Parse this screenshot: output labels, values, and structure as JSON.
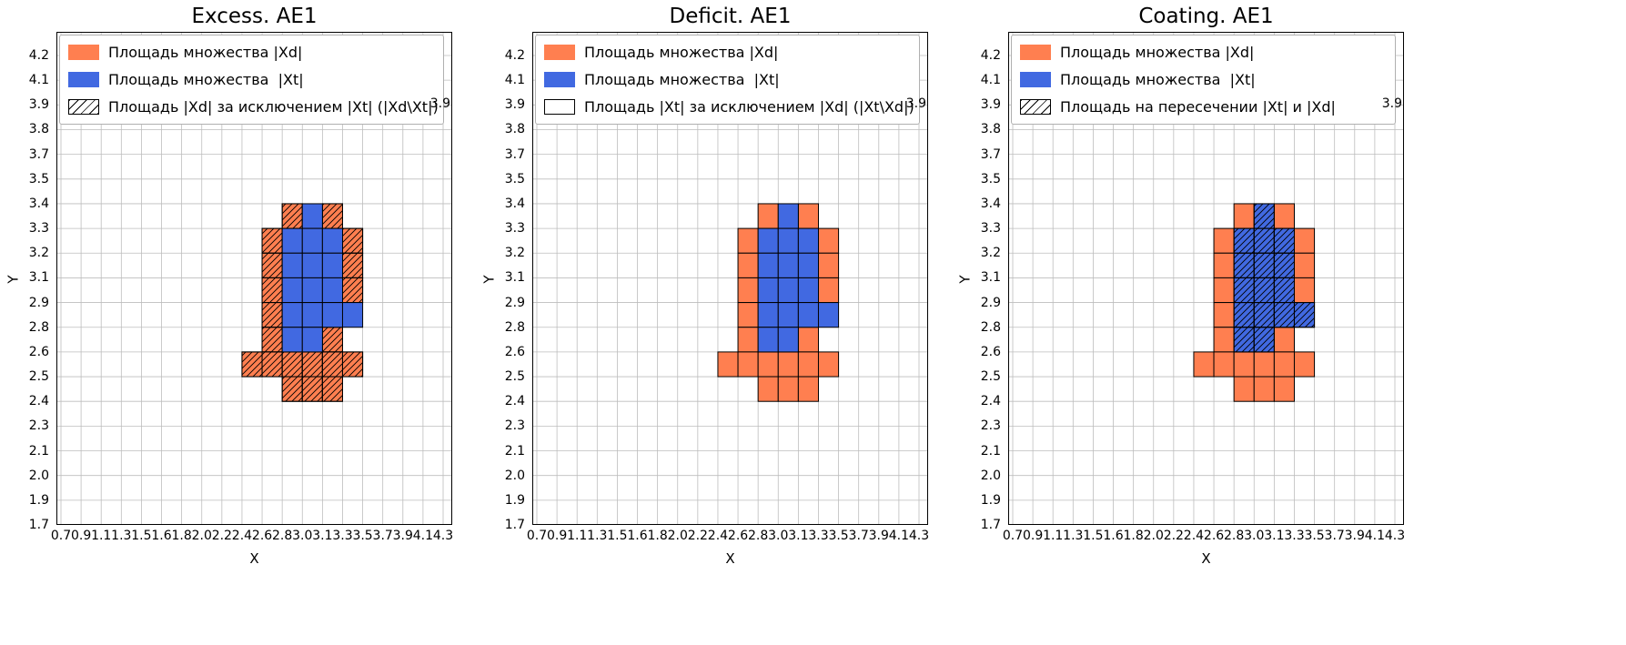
{
  "colors": {
    "xd": "#FF7F50",
    "xt": "#4169E1",
    "cell_edge": "#000000",
    "grid": "#bdbdbd",
    "spine": "#000000",
    "legend_border": "#b0b0b0",
    "background": "#ffffff"
  },
  "grid_layout": {
    "cols": 19,
    "rows": 19,
    "note": "cells indexed [col,row], col 0 at left x tick 0.7, row 0 at bottom y tick 1.7"
  },
  "chart_data": [
    {
      "type": "heatmap",
      "title": "Excess. AE1",
      "xlabel": "X",
      "ylabel": "Y",
      "grid": true,
      "legend_position": "upper left",
      "stray_right_tick_label": "3.9",
      "x_tick_labels": [
        "0.7",
        "0.9",
        "1.1",
        "1.3",
        "1.5",
        "1.6",
        "1.8",
        "2.0",
        "2.2",
        "2.4",
        "2.6",
        "2.8",
        "3.0",
        "3.1",
        "3.3",
        "3.5",
        "3.7",
        "3.9",
        "4.1",
        "4.3"
      ],
      "y_tick_labels_top_to_bottom": [
        "4.2",
        "4.1",
        "3.9",
        "3.8",
        "3.7",
        "3.5",
        "3.4",
        "3.3",
        "3.2",
        "3.1",
        "2.9",
        "2.8",
        "2.6",
        "2.5",
        "2.4",
        "2.3",
        "2.1",
        "2.0",
        "1.9",
        "1.7"
      ],
      "legend": [
        {
          "swatch": "xd",
          "label": "Площадь множества |Xd|"
        },
        {
          "swatch": "xt",
          "label": "Площадь множества  |Xt|"
        },
        {
          "swatch": "hatch",
          "label": "Площадь |Xd| за исключением |Xt| (|Xd\\Xt|)"
        }
      ],
      "series": [
        {
          "key": "xd",
          "name": "Xd",
          "color": "#FF7F50",
          "hatch": true,
          "cells_col_row": [
            [
              11,
              12
            ],
            [
              13,
              12
            ],
            [
              10,
              11
            ],
            [
              14,
              11
            ],
            [
              10,
              10
            ],
            [
              14,
              10
            ],
            [
              10,
              9
            ],
            [
              14,
              9
            ],
            [
              10,
              8
            ],
            [
              10,
              7
            ],
            [
              13,
              7
            ],
            [
              9,
              6
            ],
            [
              10,
              6
            ],
            [
              11,
              6
            ],
            [
              12,
              6
            ],
            [
              13,
              6
            ],
            [
              14,
              6
            ],
            [
              11,
              5
            ],
            [
              12,
              5
            ],
            [
              13,
              5
            ]
          ]
        },
        {
          "key": "xt",
          "name": "Xt",
          "color": "#4169E1",
          "hatch": false,
          "cells_col_row": [
            [
              12,
              12
            ],
            [
              11,
              11
            ],
            [
              12,
              11
            ],
            [
              13,
              11
            ],
            [
              11,
              10
            ],
            [
              12,
              10
            ],
            [
              13,
              10
            ],
            [
              11,
              9
            ],
            [
              12,
              9
            ],
            [
              13,
              9
            ],
            [
              11,
              8
            ],
            [
              12,
              8
            ],
            [
              13,
              8
            ],
            [
              14,
              8
            ],
            [
              11,
              7
            ],
            [
              12,
              7
            ]
          ]
        }
      ]
    },
    {
      "type": "heatmap",
      "title": "Deficit. AE1",
      "xlabel": "X",
      "ylabel": "Y",
      "grid": true,
      "legend_position": "upper left",
      "stray_right_tick_label": "3.9",
      "x_tick_labels": [
        "0.7",
        "0.9",
        "1.1",
        "1.3",
        "1.5",
        "1.6",
        "1.8",
        "2.0",
        "2.2",
        "2.4",
        "2.6",
        "2.8",
        "3.0",
        "3.1",
        "3.3",
        "3.5",
        "3.7",
        "3.9",
        "4.1",
        "4.3"
      ],
      "y_tick_labels_top_to_bottom": [
        "4.2",
        "4.1",
        "3.9",
        "3.8",
        "3.7",
        "3.5",
        "3.4",
        "3.3",
        "3.2",
        "3.1",
        "2.9",
        "2.8",
        "2.6",
        "2.5",
        "2.4",
        "2.3",
        "2.1",
        "2.0",
        "1.9",
        "1.7"
      ],
      "legend": [
        {
          "swatch": "xd",
          "label": "Площадь множества |Xd|"
        },
        {
          "swatch": "xt",
          "label": "Площадь множества  |Xt|"
        },
        {
          "swatch": "empty",
          "label": "Площадь |Xt| за исключением |Xd| (|Xt\\Xd|)"
        }
      ],
      "series": [
        {
          "key": "xd",
          "name": "Xd",
          "color": "#FF7F50",
          "hatch": false,
          "cells_col_row": [
            [
              11,
              12
            ],
            [
              13,
              12
            ],
            [
              10,
              11
            ],
            [
              14,
              11
            ],
            [
              10,
              10
            ],
            [
              14,
              10
            ],
            [
              10,
              9
            ],
            [
              14,
              9
            ],
            [
              10,
              8
            ],
            [
              10,
              7
            ],
            [
              13,
              7
            ],
            [
              9,
              6
            ],
            [
              10,
              6
            ],
            [
              11,
              6
            ],
            [
              12,
              6
            ],
            [
              13,
              6
            ],
            [
              14,
              6
            ],
            [
              11,
              5
            ],
            [
              12,
              5
            ],
            [
              13,
              5
            ]
          ]
        },
        {
          "key": "xt",
          "name": "Xt",
          "color": "#4169E1",
          "hatch": false,
          "cells_col_row": [
            [
              12,
              12
            ],
            [
              11,
              11
            ],
            [
              12,
              11
            ],
            [
              13,
              11
            ],
            [
              11,
              10
            ],
            [
              12,
              10
            ],
            [
              13,
              10
            ],
            [
              11,
              9
            ],
            [
              12,
              9
            ],
            [
              13,
              9
            ],
            [
              11,
              8
            ],
            [
              12,
              8
            ],
            [
              13,
              8
            ],
            [
              14,
              8
            ],
            [
              11,
              7
            ],
            [
              12,
              7
            ]
          ]
        }
      ]
    },
    {
      "type": "heatmap",
      "title": "Coating. AE1",
      "xlabel": "X",
      "ylabel": "Y",
      "grid": true,
      "legend_position": "upper left",
      "stray_right_tick_label": "3.9",
      "x_tick_labels": [
        "0.7",
        "0.9",
        "1.1",
        "1.3",
        "1.5",
        "1.6",
        "1.8",
        "2.0",
        "2.2",
        "2.4",
        "2.6",
        "2.8",
        "3.0",
        "3.1",
        "3.3",
        "3.5",
        "3.7",
        "3.9",
        "4.1",
        "4.3"
      ],
      "y_tick_labels_top_to_bottom": [
        "4.2",
        "4.1",
        "3.9",
        "3.8",
        "3.7",
        "3.5",
        "3.4",
        "3.3",
        "3.2",
        "3.1",
        "2.9",
        "2.8",
        "2.6",
        "2.5",
        "2.4",
        "2.3",
        "2.1",
        "2.0",
        "1.9",
        "1.7"
      ],
      "legend": [
        {
          "swatch": "xd",
          "label": "Площадь множества |Xd|"
        },
        {
          "swatch": "xt",
          "label": "Площадь множества  |Xt|"
        },
        {
          "swatch": "hatch",
          "label": "Площадь на пересечении |Xt| и |Xd|"
        }
      ],
      "series": [
        {
          "key": "xd",
          "name": "Xd",
          "color": "#FF7F50",
          "hatch": false,
          "cells_col_row": [
            [
              11,
              12
            ],
            [
              13,
              12
            ],
            [
              10,
              11
            ],
            [
              14,
              11
            ],
            [
              10,
              10
            ],
            [
              14,
              10
            ],
            [
              10,
              9
            ],
            [
              14,
              9
            ],
            [
              10,
              8
            ],
            [
              10,
              7
            ],
            [
              13,
              7
            ],
            [
              9,
              6
            ],
            [
              10,
              6
            ],
            [
              11,
              6
            ],
            [
              12,
              6
            ],
            [
              13,
              6
            ],
            [
              14,
              6
            ],
            [
              11,
              5
            ],
            [
              12,
              5
            ],
            [
              13,
              5
            ]
          ]
        },
        {
          "key": "xt",
          "name": "Xt",
          "color": "#4169E1",
          "hatch": true,
          "cells_col_row": [
            [
              12,
              12
            ],
            [
              11,
              11
            ],
            [
              12,
              11
            ],
            [
              13,
              11
            ],
            [
              11,
              10
            ],
            [
              12,
              10
            ],
            [
              13,
              10
            ],
            [
              11,
              9
            ],
            [
              12,
              9
            ],
            [
              13,
              9
            ],
            [
              11,
              8
            ],
            [
              12,
              8
            ],
            [
              13,
              8
            ],
            [
              14,
              8
            ],
            [
              11,
              7
            ],
            [
              12,
              7
            ]
          ]
        }
      ]
    }
  ]
}
